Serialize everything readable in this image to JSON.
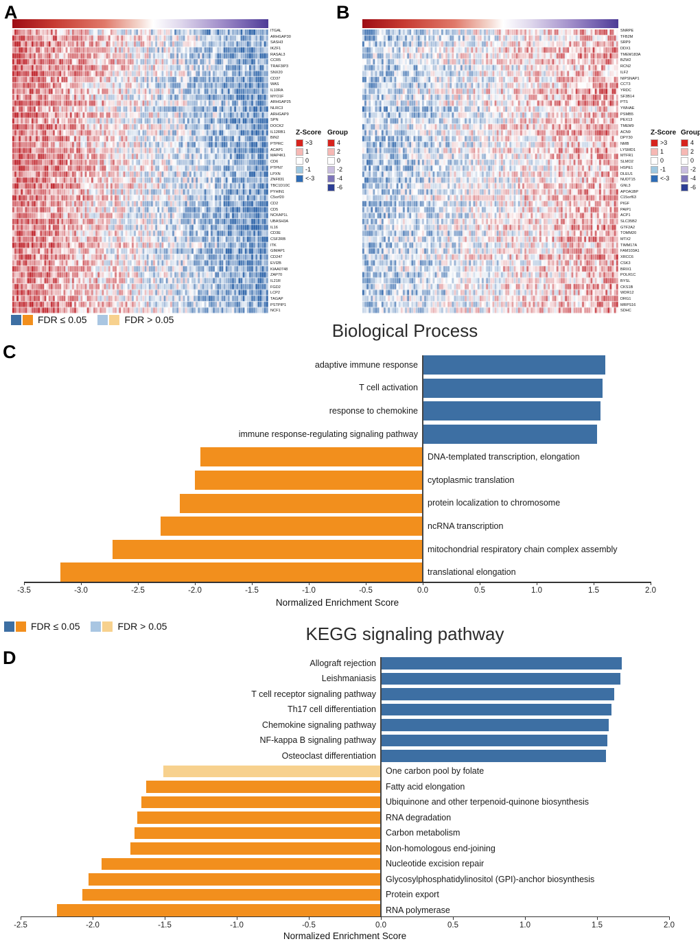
{
  "figure": {
    "panel_labels": {
      "a": "A",
      "b": "B",
      "c": "C",
      "d": "D"
    }
  },
  "colors": {
    "pos_sig": "#3d6fa3",
    "neg_sig": "#f28f1d",
    "pos_nonsig": "#a9c6e2",
    "neg_nonsig": "#f7d18e"
  },
  "fdr_legend": {
    "significant_label": "FDR ≤ 0.05",
    "nonsignificant_label": "FDR > 0.05",
    "significant_colors": [
      "#3d6fa3",
      "#f28f1d"
    ],
    "nonsignificant_colors": [
      "#a9c6e2",
      "#f7d18e"
    ]
  },
  "chart_data": [
    {
      "id": "panel_a_heatmap",
      "type": "heatmap",
      "description": "Up-regulated gene set heatmap: samples ordered left (high, red) to right (low, blue)",
      "genes": [
        "ITGAL",
        "ARHGAP30",
        "SASH3",
        "IKZF1",
        "RASAL3",
        "CCR5",
        "TRAF3IP3",
        "SNX20",
        "CD37",
        "WAS",
        "IL10RA",
        "MYO1F",
        "ARHGAP25",
        "NLRC3",
        "ARHGAP9",
        "SPN",
        "DOCK2",
        "IL12RB1",
        "BIN2",
        "PTPRC",
        "ACAP1",
        "MAP4K1",
        "CD6",
        "PTPN7",
        "LPXN",
        "ZNF831",
        "TBC1D10C",
        "PYHIN1",
        "C5orf20",
        "CD2",
        "CD5",
        "NCKAP1L",
        "UBASH3A",
        "IL16",
        "CD3E",
        "CSF2RB",
        "ITK",
        "GIMAP1",
        "CD247",
        "EVI2B",
        "KIAA0748",
        "ZAP70",
        "IL21R",
        "FGD2",
        "LCP2",
        "TAGAP",
        "PSTPIP1",
        "NCF1"
      ],
      "zscore_legend": {
        "title": "Z-Score",
        "entries": [
          {
            "label": ">3",
            "color": "#d7231d"
          },
          {
            "label": "1",
            "color": "#f6b8b4"
          },
          {
            "label": "0",
            "color": "#ffffff"
          },
          {
            "label": "-1",
            "color": "#9fc8e0"
          },
          {
            "label": "<-3",
            "color": "#2f6db6"
          }
        ]
      },
      "group_legend": {
        "title": "Group",
        "entries": [
          {
            "label": "4",
            "color": "#d7231d"
          },
          {
            "label": "2",
            "color": "#f6b8b4"
          },
          {
            "label": "0",
            "color": "#ffffff"
          },
          {
            "label": "-2",
            "color": "#c9bedf"
          },
          {
            "label": "-4",
            "color": "#7d74b8"
          },
          {
            "label": "-6",
            "color": "#2c3e94"
          }
        ]
      },
      "value_range": [
        -3,
        3
      ],
      "render": {
        "columns": 120,
        "direction": 1,
        "amplitude": 2.0,
        "noise": 1.4,
        "seed": 7,
        "power": 0.85
      }
    },
    {
      "id": "panel_b_heatmap",
      "type": "heatmap",
      "description": "Down-regulated gene set heatmap: samples ordered left (low, blue) to right (high, red)",
      "genes": [
        "SNRPE",
        "TFB2M",
        "SRP9",
        "DDX1",
        "TMEM183A",
        "BZW2",
        "RCN2",
        "ILF2",
        "NIPSNAP1",
        "CCT3",
        "YRDC",
        "SF3B14",
        "PTS",
        "YWHAE",
        "PSMB5",
        "PEX13",
        "TMEM9",
        "ACN9",
        "DPY30",
        "NMB",
        "LYSMD1",
        "MTFR1",
        "SLMO2",
        "HSPE1",
        "DLEU1",
        "NUDT15",
        "GNL3",
        "APOA1BP",
        "C15orf63",
        "PIGF",
        "PAIP1",
        "ACP1",
        "SLC35B2",
        "GTF2A2",
        "TOMM20",
        "MTX2",
        "TIMM17A",
        "FAM103A1",
        "XRCC6",
        "CSK3",
        "BRIX1",
        "POLR1C",
        "BYSL",
        "CKS1B",
        "WDR12",
        "DRG1",
        "MRPS16",
        "SDHC"
      ],
      "zscore_legend": {
        "title": "Z-Score",
        "entries": [
          {
            "label": ">3",
            "color": "#d7231d"
          },
          {
            "label": "1",
            "color": "#f6b8b4"
          },
          {
            "label": "0",
            "color": "#ffffff"
          },
          {
            "label": "-1",
            "color": "#9fc8e0"
          },
          {
            "label": "<-3",
            "color": "#2f6db6"
          }
        ]
      },
      "group_legend": {
        "title": "Group",
        "entries": [
          {
            "label": "4",
            "color": "#d7231d"
          },
          {
            "label": "2",
            "color": "#f6b8b4"
          },
          {
            "label": "0",
            "color": "#ffffff"
          },
          {
            "label": "-2",
            "color": "#c9bedf"
          },
          {
            "label": "-4",
            "color": "#7d74b8"
          },
          {
            "label": "-6",
            "color": "#2c3e94"
          }
        ]
      },
      "value_range": [
        -3,
        3
      ],
      "render": {
        "columns": 120,
        "direction": -1,
        "amplitude": 1.25,
        "noise": 1.5,
        "seed": 13,
        "power": 1.0
      }
    },
    {
      "id": "biological_process",
      "type": "bar",
      "orientation": "horizontal",
      "title": "Biological Process",
      "xlabel": "Normalized Enrichment Score",
      "xlim": [
        -3.5,
        2.0
      ],
      "xticks": [
        -3.5,
        -3.0,
        -2.5,
        -2.0,
        -1.5,
        -1.0,
        -0.5,
        0.0,
        0.5,
        1.0,
        1.5,
        2.0
      ],
      "legend": [
        "FDR ≤ 0.05",
        "FDR > 0.05"
      ],
      "bars": [
        {
          "label": "adaptive immune response",
          "value": 1.6,
          "fdr": "≤0.05"
        },
        {
          "label": "T cell activation",
          "value": 1.58,
          "fdr": "≤0.05"
        },
        {
          "label": "response to chemokine",
          "value": 1.56,
          "fdr": "≤0.05"
        },
        {
          "label": "immune response-regulating signaling pathway",
          "value": 1.53,
          "fdr": "≤0.05"
        },
        {
          "label": "DNA-templated transcription, elongation",
          "value": -1.95,
          "fdr": "≤0.05"
        },
        {
          "label": "cytoplasmic translation",
          "value": -2.0,
          "fdr": "≤0.05"
        },
        {
          "label": "protein localization to chromosome",
          "value": -2.13,
          "fdr": "≤0.05"
        },
        {
          "label": "ncRNA transcription",
          "value": -2.3,
          "fdr": "≤0.05"
        },
        {
          "label": "mitochondrial respiratory chain complex assembly",
          "value": -2.72,
          "fdr": "≤0.05"
        },
        {
          "label": "translational elongation",
          "value": -3.18,
          "fdr": "≤0.05"
        }
      ]
    },
    {
      "id": "kegg_signaling_pathway",
      "type": "bar",
      "orientation": "horizontal",
      "title": "KEGG signaling pathway",
      "xlabel": "Normalized Enrichment Score",
      "xlim": [
        -2.5,
        2.0
      ],
      "xticks": [
        -2.5,
        -2.0,
        -1.5,
        -1.0,
        -0.5,
        0.0,
        0.5,
        1.0,
        1.5,
        2.0
      ],
      "legend": [
        "FDR ≤ 0.05",
        "FDR > 0.05"
      ],
      "bars": [
        {
          "label": "Allograft rejection",
          "value": 1.67,
          "fdr": "≤0.05"
        },
        {
          "label": "Leishmaniasis",
          "value": 1.66,
          "fdr": "≤0.05"
        },
        {
          "label": "T cell receptor signaling pathway",
          "value": 1.62,
          "fdr": "≤0.05"
        },
        {
          "label": "Th17 cell differentiation",
          "value": 1.6,
          "fdr": "≤0.05"
        },
        {
          "label": "Chemokine signaling pathway",
          "value": 1.58,
          "fdr": "≤0.05"
        },
        {
          "label": "NF-kappa B signaling pathway",
          "value": 1.57,
          "fdr": "≤0.05"
        },
        {
          "label": "Osteoclast differentiation",
          "value": 1.56,
          "fdr": "≤0.05"
        },
        {
          "label": "One carbon pool by folate",
          "value": -1.51,
          "fdr": ">0.05"
        },
        {
          "label": "Fatty acid elongation",
          "value": -1.63,
          "fdr": "≤0.05"
        },
        {
          "label": "Ubiquinone and other terpenoid-quinone biosynthesis",
          "value": -1.66,
          "fdr": "≤0.05"
        },
        {
          "label": "RNA degradation",
          "value": -1.69,
          "fdr": "≤0.05"
        },
        {
          "label": "Carbon metabolism",
          "value": -1.71,
          "fdr": "≤0.05"
        },
        {
          "label": "Non-homologous end-joining",
          "value": -1.74,
          "fdr": "≤0.05"
        },
        {
          "label": "Nucleotide excision repair",
          "value": -1.94,
          "fdr": "≤0.05"
        },
        {
          "label": "Glycosylphosphatidylinositol (GPI)-anchor biosynthesis",
          "value": -2.03,
          "fdr": "≤0.05"
        },
        {
          "label": "Protein export",
          "value": -2.07,
          "fdr": "≤0.05"
        },
        {
          "label": "RNA polymerase",
          "value": -2.25,
          "fdr": "≤0.05"
        }
      ]
    }
  ]
}
